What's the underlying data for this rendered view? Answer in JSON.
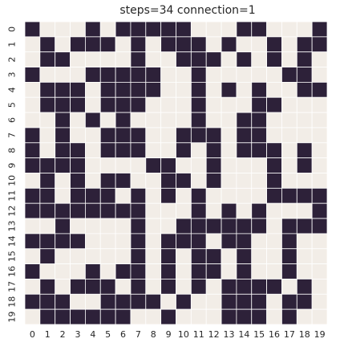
{
  "chart_data": {
    "type": "heatmap",
    "title": "steps=34 connection=1",
    "xlabel": "",
    "ylabel": "",
    "x_ticks": [
      "0",
      "1",
      "2",
      "3",
      "4",
      "5",
      "6",
      "7",
      "8",
      "9",
      "10",
      "11",
      "12",
      "13",
      "14",
      "15",
      "16",
      "17",
      "18",
      "19"
    ],
    "y_ticks": [
      "0",
      "1",
      "2",
      "3",
      "4",
      "5",
      "6",
      "7",
      "8",
      "9",
      "10",
      "11",
      "12",
      "13",
      "14",
      "15",
      "16",
      "17",
      "18",
      "19"
    ],
    "colormap": {
      "0": "#f2ede7",
      "1": "#2d2139"
    },
    "grid_line_color": "#ffffff",
    "values": [
      [
        1,
        0,
        0,
        0,
        1,
        0,
        1,
        1,
        1,
        1,
        1,
        0,
        0,
        0,
        1,
        1,
        0,
        0,
        0,
        1
      ],
      [
        0,
        1,
        0,
        1,
        1,
        1,
        0,
        1,
        0,
        1,
        1,
        1,
        0,
        1,
        0,
        0,
        1,
        0,
        1,
        1
      ],
      [
        0,
        1,
        1,
        0,
        0,
        0,
        0,
        1,
        0,
        0,
        1,
        1,
        1,
        0,
        1,
        0,
        1,
        0,
        1,
        0
      ],
      [
        1,
        0,
        0,
        0,
        1,
        1,
        1,
        1,
        1,
        0,
        0,
        1,
        0,
        0,
        0,
        0,
        0,
        1,
        1,
        0
      ],
      [
        0,
        1,
        1,
        1,
        0,
        1,
        1,
        1,
        1,
        0,
        0,
        1,
        0,
        1,
        0,
        1,
        0,
        0,
        1,
        1
      ],
      [
        0,
        1,
        1,
        1,
        0,
        1,
        1,
        1,
        0,
        0,
        0,
        1,
        0,
        0,
        0,
        1,
        1,
        0,
        0,
        0
      ],
      [
        0,
        0,
        1,
        0,
        1,
        0,
        1,
        0,
        0,
        0,
        0,
        1,
        0,
        0,
        1,
        1,
        0,
        0,
        0,
        0
      ],
      [
        1,
        0,
        1,
        0,
        0,
        1,
        1,
        1,
        0,
        0,
        1,
        1,
        1,
        0,
        1,
        1,
        0,
        0,
        0,
        0
      ],
      [
        1,
        0,
        1,
        1,
        0,
        1,
        1,
        1,
        0,
        0,
        1,
        0,
        1,
        0,
        1,
        1,
        1,
        0,
        1,
        0
      ],
      [
        1,
        1,
        1,
        1,
        0,
        0,
        0,
        0,
        1,
        1,
        0,
        0,
        1,
        0,
        0,
        0,
        1,
        0,
        1,
        0
      ],
      [
        0,
        1,
        0,
        1,
        0,
        1,
        1,
        0,
        0,
        1,
        1,
        0,
        1,
        0,
        0,
        0,
        1,
        0,
        0,
        0
      ],
      [
        1,
        1,
        0,
        1,
        1,
        1,
        0,
        1,
        0,
        1,
        0,
        1,
        0,
        0,
        0,
        0,
        1,
        1,
        1,
        1
      ],
      [
        1,
        1,
        1,
        1,
        1,
        1,
        1,
        1,
        0,
        0,
        0,
        1,
        0,
        1,
        0,
        1,
        0,
        0,
        0,
        1
      ],
      [
        0,
        0,
        1,
        0,
        0,
        0,
        0,
        1,
        0,
        0,
        1,
        1,
        1,
        1,
        1,
        1,
        0,
        1,
        1,
        1
      ],
      [
        1,
        1,
        1,
        1,
        0,
        0,
        0,
        1,
        0,
        1,
        1,
        1,
        0,
        1,
        1,
        0,
        0,
        1,
        0,
        0
      ],
      [
        0,
        1,
        0,
        0,
        0,
        0,
        0,
        1,
        0,
        1,
        0,
        1,
        1,
        0,
        1,
        0,
        0,
        1,
        0,
        0
      ],
      [
        1,
        0,
        0,
        0,
        1,
        0,
        1,
        1,
        0,
        1,
        0,
        1,
        1,
        0,
        1,
        0,
        0,
        1,
        0,
        0
      ],
      [
        0,
        1,
        0,
        1,
        1,
        1,
        0,
        1,
        0,
        1,
        0,
        1,
        0,
        1,
        1,
        1,
        1,
        0,
        1,
        0
      ],
      [
        1,
        1,
        1,
        0,
        0,
        1,
        1,
        1,
        1,
        0,
        1,
        0,
        0,
        1,
        1,
        1,
        0,
        1,
        1,
        0
      ],
      [
        0,
        1,
        1,
        1,
        1,
        1,
        1,
        0,
        0,
        1,
        0,
        0,
        0,
        1,
        1,
        1,
        0,
        1,
        0,
        0
      ]
    ]
  }
}
